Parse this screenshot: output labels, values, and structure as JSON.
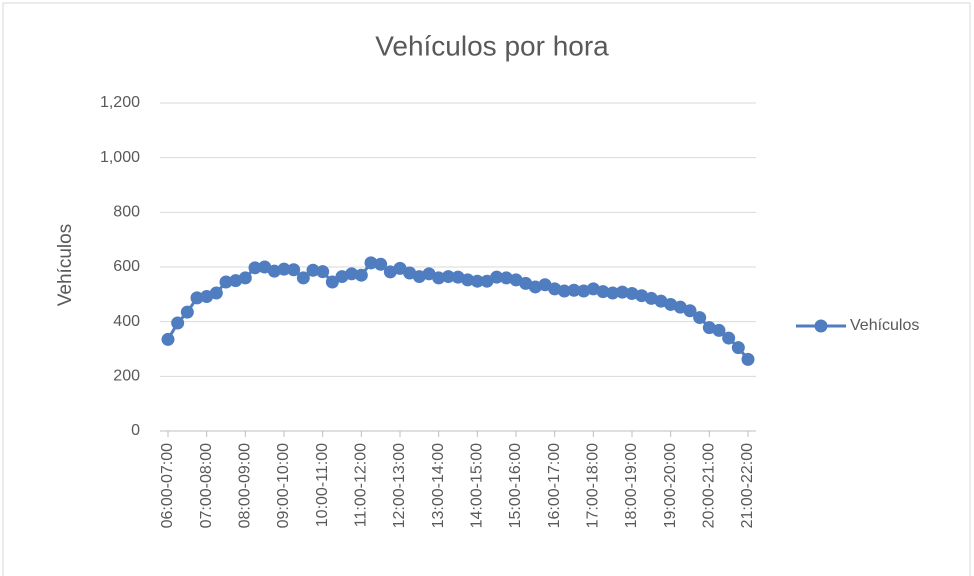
{
  "chart_data": {
    "type": "line",
    "title": "Vehículos por hora",
    "y_label": "Vehículos",
    "categories": [
      "06:00-07:00",
      null,
      null,
      null,
      "07:00-08:00",
      null,
      null,
      null,
      "08:00-09:00",
      null,
      null,
      null,
      "09:00-10:00",
      null,
      null,
      null,
      "10:00-11:00",
      null,
      null,
      null,
      "11:00-12:00",
      null,
      null,
      null,
      "12:00-13:00",
      null,
      null,
      null,
      "13:00-14:00",
      null,
      null,
      null,
      "14:00-15:00",
      null,
      null,
      null,
      "15:00-16:00",
      null,
      null,
      null,
      "16:00-17:00",
      null,
      null,
      null,
      "17:00-18:00",
      null,
      null,
      null,
      "18:00-19:00",
      null,
      null,
      null,
      "19:00-20:00",
      null,
      null,
      null,
      "20:00-21:00",
      null,
      null,
      null,
      "21:00-22:00"
    ],
    "series": [
      {
        "name": "Vehículos",
        "color": "#4f7dc0",
        "values": [
          335,
          395,
          435,
          487,
          492,
          505,
          545,
          550,
          560,
          597,
          600,
          585,
          592,
          590,
          560,
          588,
          583,
          545,
          565,
          575,
          570,
          615,
          610,
          582,
          595,
          578,
          565,
          575,
          560,
          565,
          563,
          553,
          548,
          548,
          563,
          560,
          553,
          540,
          527,
          535,
          520,
          512,
          515,
          512,
          520,
          510,
          505,
          508,
          503,
          495,
          485,
          475,
          463,
          453,
          440,
          415,
          378,
          368,
          340,
          305,
          262
        ]
      }
    ],
    "ylim": [
      0,
      1200
    ],
    "yticks": [
      0,
      200,
      400,
      600,
      800,
      {
        "value": 1000,
        "label": "1,000"
      },
      {
        "value": 1200,
        "label": "1,200"
      }
    ],
    "grid": true,
    "legend": "right"
  }
}
